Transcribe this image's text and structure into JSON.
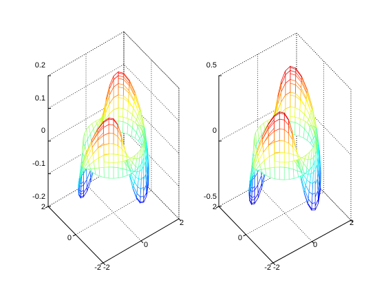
{
  "chart_data": [
    {
      "type": "surface",
      "title": "",
      "xlabel": "",
      "ylabel": "",
      "zlabel": "",
      "xlim": [
        -2,
        2
      ],
      "ylim": [
        -2,
        2
      ],
      "zlim": [
        -0.2,
        0.2
      ],
      "x_ticks": [
        "-2",
        "0",
        "2"
      ],
      "y_ticks": [
        "-2",
        "0",
        "2"
      ],
      "z_ticks": [
        "-0.2",
        "-0.1",
        "0",
        "0.1",
        "0.2"
      ],
      "surface": {
        "shape": "ring (radius ~1.3) around z-axis",
        "amplitude": 0.16,
        "lobes": 4,
        "description_values": {
          "peak_z": 0.16,
          "trough_z": -0.16
        }
      },
      "colormap": "jet",
      "grid": true,
      "box": true
    },
    {
      "type": "surface",
      "title": "",
      "xlabel": "",
      "ylabel": "",
      "zlabel": "",
      "xlim": [
        -2,
        2
      ],
      "ylim": [
        -2,
        2
      ],
      "zlim": [
        -0.5,
        0.5
      ],
      "x_ticks": [
        "-2",
        "0",
        "2"
      ],
      "y_ticks": [
        "-2",
        "0",
        "2"
      ],
      "z_ticks": [
        "-0.5",
        "0",
        "0.5"
      ],
      "surface": {
        "shape": "ring (radius ~1.3) around z-axis",
        "amplitude": 0.45,
        "lobes": 4,
        "description_values": {
          "peak_z": 0.45,
          "trough_z": -0.45
        }
      },
      "colormap": "jet",
      "grid": true,
      "box": true
    }
  ]
}
